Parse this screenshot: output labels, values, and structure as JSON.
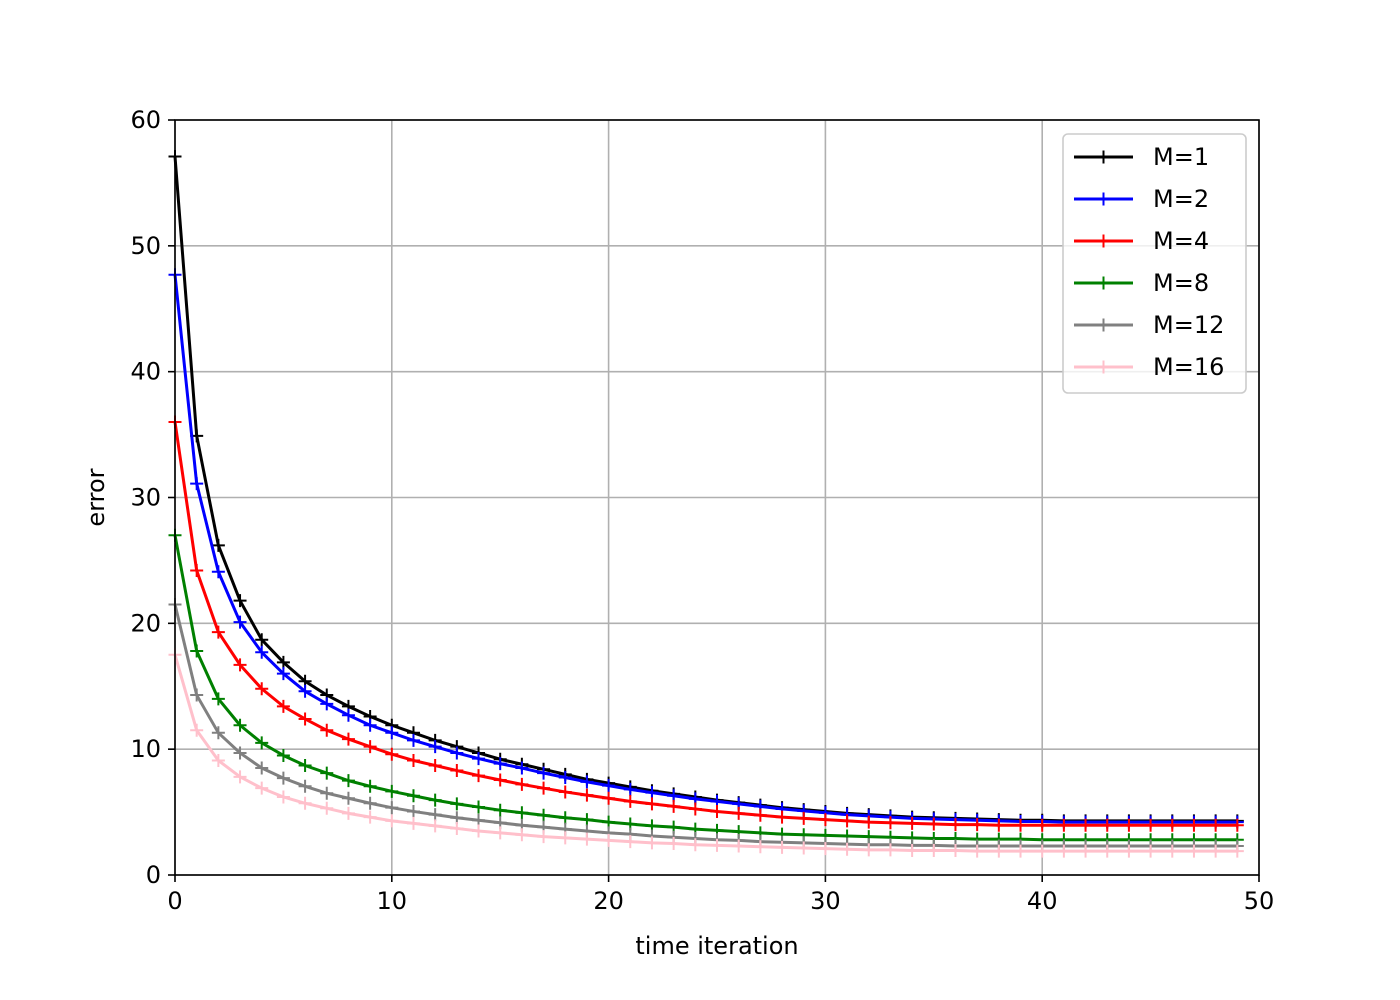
{
  "chart_data": {
    "type": "line",
    "title": "",
    "xlabel": "time iteration",
    "ylabel": "error",
    "xlim": [
      0,
      50
    ],
    "ylim": [
      0,
      60
    ],
    "xticks": [
      0,
      10,
      20,
      30,
      40,
      50
    ],
    "yticks": [
      0,
      10,
      20,
      30,
      40,
      50,
      60
    ],
    "x_tick_labels": [
      "0",
      "10",
      "20",
      "30",
      "40",
      "50"
    ],
    "y_tick_labels": [
      "0",
      "10",
      "20",
      "30",
      "40",
      "50",
      "60"
    ],
    "grid": true,
    "legend_position": "top-right",
    "marker": "+",
    "x": [
      0,
      1,
      2,
      3,
      4,
      5,
      6,
      7,
      8,
      9,
      10,
      11,
      12,
      13,
      14,
      15,
      16,
      17,
      18,
      19,
      20,
      21,
      22,
      23,
      24,
      25,
      26,
      27,
      28,
      29,
      30,
      31,
      32,
      33,
      34,
      35,
      36,
      37,
      38,
      39,
      40,
      41,
      42,
      43,
      44,
      45,
      46,
      47,
      48,
      49
    ],
    "series": [
      {
        "name": "M=1",
        "color": "#000000",
        "values": [
          57.1,
          34.9,
          26.2,
          21.8,
          18.7,
          16.9,
          15.4,
          14.3,
          13.4,
          12.6,
          11.9,
          11.3,
          10.7,
          10.2,
          9.7,
          9.2,
          8.8,
          8.4,
          8.0,
          7.6,
          7.3,
          7.0,
          6.7,
          6.45,
          6.2,
          5.95,
          5.75,
          5.55,
          5.35,
          5.2,
          5.05,
          4.9,
          4.8,
          4.7,
          4.6,
          4.55,
          4.5,
          4.45,
          4.4,
          4.35,
          4.35,
          4.3,
          4.3,
          4.3,
          4.3,
          4.3,
          4.3,
          4.3,
          4.3,
          4.3
        ]
      },
      {
        "name": "M=2",
        "color": "#0000ff",
        "values": [
          47.7,
          31.1,
          24.1,
          20.1,
          17.7,
          16.0,
          14.6,
          13.6,
          12.7,
          11.9,
          11.3,
          10.7,
          10.2,
          9.7,
          9.25,
          8.85,
          8.5,
          8.1,
          7.75,
          7.4,
          7.1,
          6.8,
          6.55,
          6.3,
          6.05,
          5.85,
          5.65,
          5.45,
          5.25,
          5.1,
          4.95,
          4.8,
          4.7,
          4.6,
          4.5,
          4.45,
          4.4,
          4.35,
          4.3,
          4.25,
          4.25,
          4.2,
          4.2,
          4.2,
          4.2,
          4.2,
          4.2,
          4.2,
          4.2,
          4.2
        ]
      },
      {
        "name": "M=4",
        "color": "#ff0000",
        "values": [
          36.0,
          24.2,
          19.3,
          16.7,
          14.8,
          13.4,
          12.4,
          11.5,
          10.8,
          10.2,
          9.6,
          9.1,
          8.7,
          8.3,
          7.9,
          7.55,
          7.2,
          6.9,
          6.6,
          6.35,
          6.1,
          5.85,
          5.65,
          5.45,
          5.25,
          5.05,
          4.9,
          4.75,
          4.6,
          4.5,
          4.4,
          4.3,
          4.2,
          4.15,
          4.1,
          4.05,
          4.0,
          4.0,
          3.95,
          3.95,
          3.95,
          3.95,
          3.95,
          3.95,
          3.95,
          3.95,
          3.95,
          3.95,
          3.95,
          3.95
        ]
      },
      {
        "name": "M=8",
        "color": "#008000",
        "values": [
          27.0,
          17.8,
          14.0,
          11.9,
          10.5,
          9.5,
          8.7,
          8.1,
          7.5,
          7.05,
          6.65,
          6.3,
          5.95,
          5.65,
          5.4,
          5.15,
          4.95,
          4.75,
          4.55,
          4.4,
          4.2,
          4.05,
          3.9,
          3.8,
          3.65,
          3.55,
          3.45,
          3.35,
          3.25,
          3.2,
          3.15,
          3.1,
          3.05,
          3.0,
          2.95,
          2.9,
          2.9,
          2.85,
          2.85,
          2.85,
          2.8,
          2.8,
          2.8,
          2.8,
          2.8,
          2.8,
          2.8,
          2.8,
          2.8,
          2.8
        ]
      },
      {
        "name": "M=12",
        "color": "#808080",
        "values": [
          21.5,
          14.3,
          11.3,
          9.7,
          8.5,
          7.7,
          7.05,
          6.5,
          6.1,
          5.7,
          5.35,
          5.05,
          4.8,
          4.55,
          4.35,
          4.15,
          3.95,
          3.8,
          3.65,
          3.5,
          3.35,
          3.25,
          3.1,
          3.0,
          2.9,
          2.8,
          2.75,
          2.65,
          2.6,
          2.55,
          2.5,
          2.45,
          2.4,
          2.4,
          2.35,
          2.35,
          2.3,
          2.3,
          2.3,
          2.3,
          2.3,
          2.3,
          2.3,
          2.3,
          2.3,
          2.3,
          2.3,
          2.3,
          2.3,
          2.3
        ]
      },
      {
        "name": "M=16",
        "color": "#ffc0cb",
        "values": [
          17.5,
          11.5,
          9.1,
          7.8,
          6.9,
          6.2,
          5.7,
          5.3,
          4.9,
          4.6,
          4.3,
          4.1,
          3.9,
          3.7,
          3.5,
          3.35,
          3.2,
          3.05,
          2.95,
          2.85,
          2.75,
          2.65,
          2.55,
          2.5,
          2.4,
          2.35,
          2.3,
          2.25,
          2.2,
          2.15,
          2.1,
          2.05,
          2.0,
          2.0,
          1.95,
          1.95,
          1.95,
          1.9,
          1.9,
          1.9,
          1.9,
          1.9,
          1.9,
          1.9,
          1.9,
          1.9,
          1.9,
          1.9,
          1.9,
          1.9
        ]
      }
    ]
  }
}
